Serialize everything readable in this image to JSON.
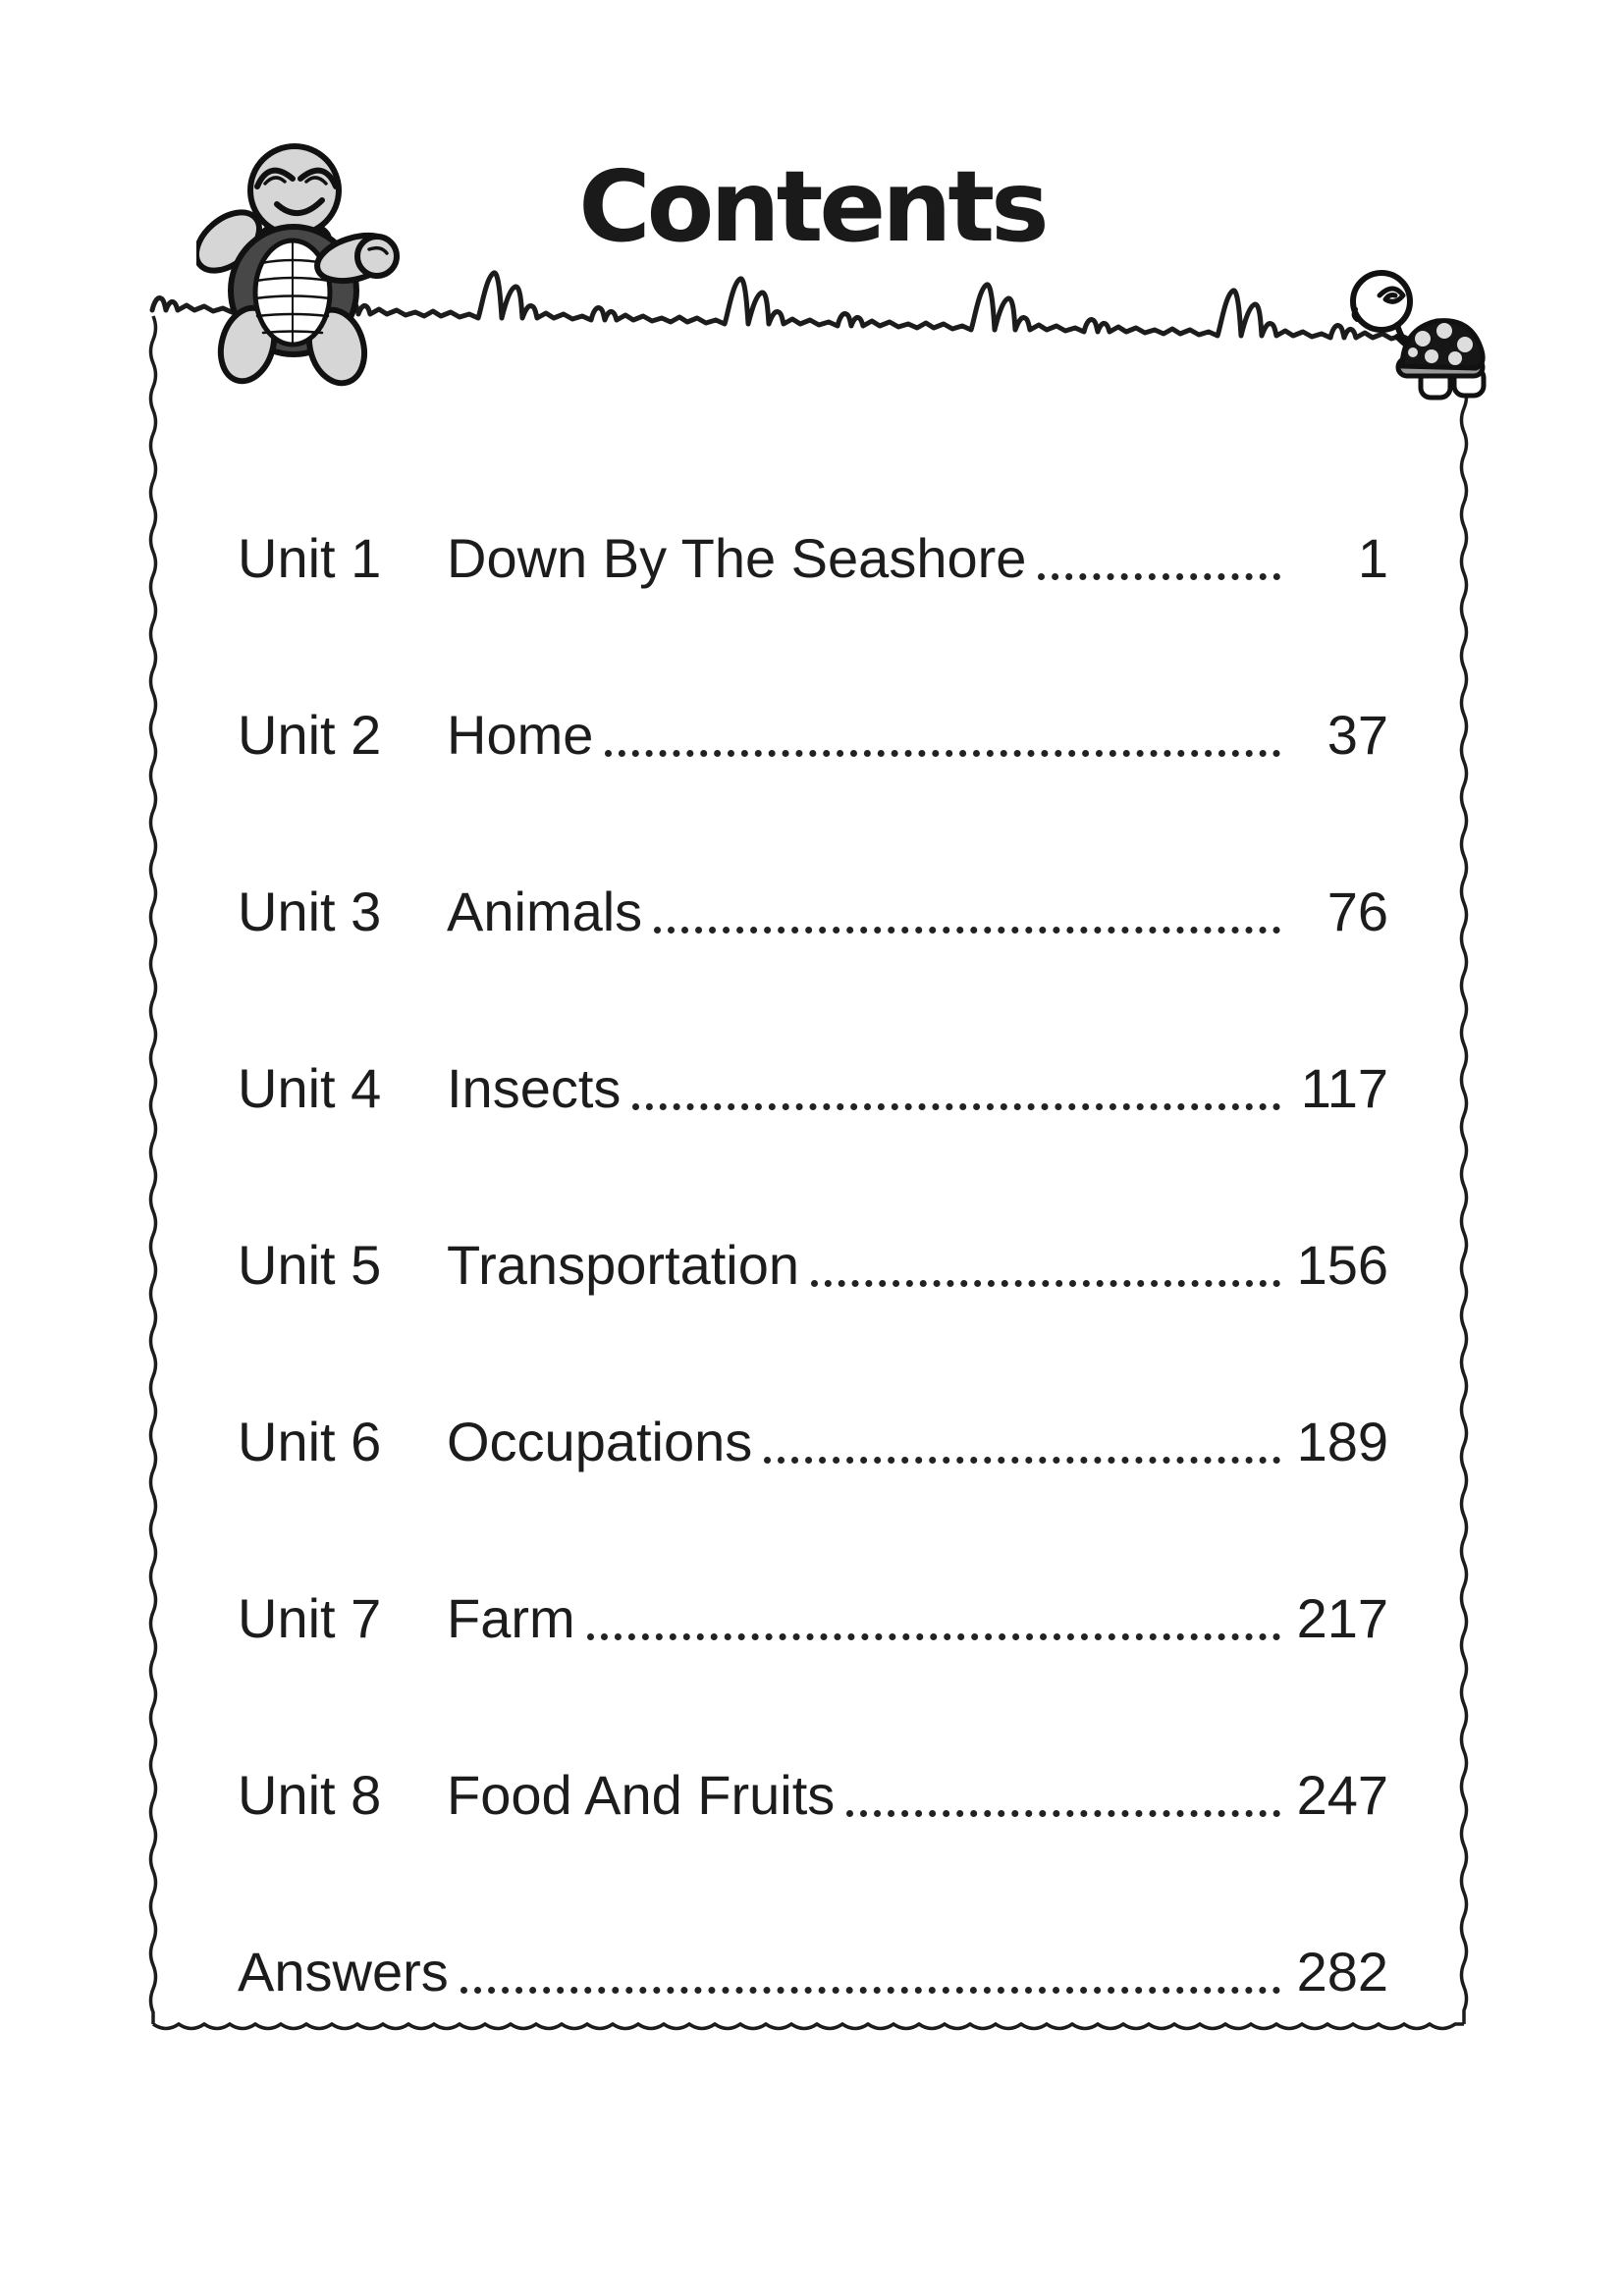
{
  "page_title": "Contents",
  "toc": {
    "rows": [
      {
        "unit": "Unit 1",
        "title": "Down By The Seashore",
        "page": "1"
      },
      {
        "unit": "Unit 2",
        "title": "Home",
        "page": "37"
      },
      {
        "unit": "Unit 3",
        "title": "Animals",
        "page": "76"
      },
      {
        "unit": "Unit 4",
        "title": "Insects",
        "page": "117"
      },
      {
        "unit": "Unit 5",
        "title": "Transportation",
        "page": "156"
      },
      {
        "unit": "Unit 6",
        "title": "Occupations",
        "page": "189"
      },
      {
        "unit": "Unit 7",
        "title": "Farm",
        "page": "217"
      },
      {
        "unit": "Unit 8",
        "title": "Food And Fruits",
        "page": "247"
      },
      {
        "unit": "",
        "title": "Answers",
        "page": "282"
      }
    ]
  },
  "decor": {
    "ink_color": "#1c1c1c",
    "turtle_skin_color": "#d6d6d6",
    "shell_dark_color": "#474747",
    "left_icon": "standing-turtle-icon",
    "right_icon": "walking-turtle-icon"
  }
}
